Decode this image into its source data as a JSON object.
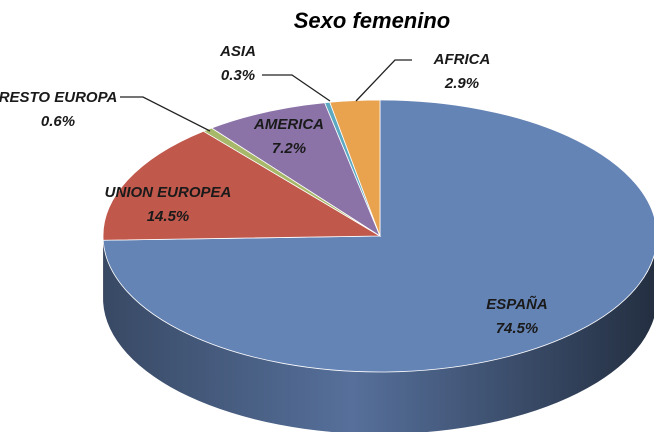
{
  "chart_data": {
    "type": "pie",
    "title": "Sexo femenino",
    "categories": [
      "ESPAÑA",
      "UNION EUROPEA",
      "RESTO EUROPA",
      "AMERICA",
      "ASIA",
      "AFRICA"
    ],
    "values": [
      74.5,
      14.5,
      0.6,
      7.2,
      0.3,
      2.9
    ],
    "value_labels": [
      "74.5%",
      "14.5%",
      "0.6%",
      "7.2%",
      "0.3%",
      "2.9%"
    ],
    "colors": [
      "#6584b6",
      "#c0584c",
      "#a8b86a",
      "#8b73a8",
      "#5ea9c2",
      "#e9a24e"
    ]
  }
}
